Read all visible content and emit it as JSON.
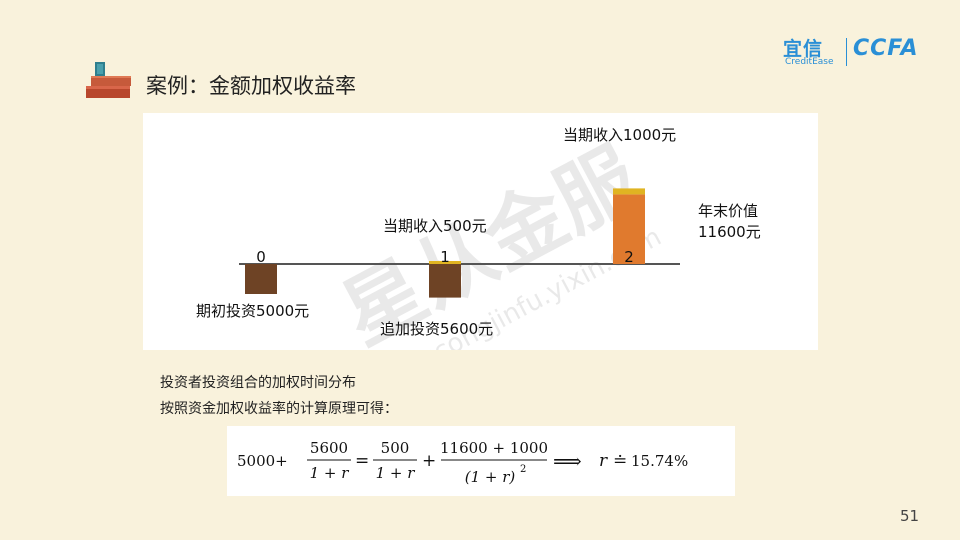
{
  "slide": {
    "title": "案例：金额加权收益率",
    "page_number": "51"
  },
  "logo": {
    "brand_cn": "宜信",
    "brand_en": "CreditEase",
    "partner": "CCFA"
  },
  "watermark": {
    "cn": "星从金服",
    "en": "xingcongjinfu.yixin.com"
  },
  "chart_data": {
    "type": "bar",
    "categories": [
      "0",
      "1",
      "2"
    ],
    "annotations": {
      "t0_bottom": "期初投资5000元",
      "t1_top": "当期收入500元",
      "t1_bottom": "追加投资5600元",
      "t2_top": "当期收入1000元",
      "t2_side": [
        "年末价值",
        "11600元"
      ]
    },
    "series": [
      {
        "name": "期初投资5000元",
        "values": [
          -5000,
          0,
          0
        ]
      },
      {
        "name": "追加投资5600元",
        "values": [
          0,
          -5600,
          0
        ]
      },
      {
        "name": "当期收入500元",
        "values": [
          0,
          500,
          0
        ]
      },
      {
        "name": "年末价值11600元",
        "values": [
          0,
          0,
          11600
        ]
      },
      {
        "name": "当期收入1000元",
        "values": [
          0,
          0,
          1000
        ]
      }
    ],
    "colors": {
      "investment": "#6e4325",
      "income": "#e0b422",
      "value": "#e07a2e",
      "axis": "#555555"
    },
    "grid": false
  },
  "explanation": {
    "line1": "投资者投资组合的加权时间分布",
    "line2": "按照资金加权收益率的计算原理可得："
  },
  "formula": {
    "lhs": "5000+",
    "frac1_num": "5600",
    "frac1_den": "1 + r",
    "eq": "=",
    "frac2_num": "500",
    "frac2_den": "1 + r",
    "plus": "+",
    "frac3_num": "11600 + 1000",
    "frac3_den": "(1 + r)",
    "frac3_exp": "2",
    "implies": "⟹",
    "result_var": "r",
    "approx": "≐",
    "result_value": "15.74%"
  }
}
